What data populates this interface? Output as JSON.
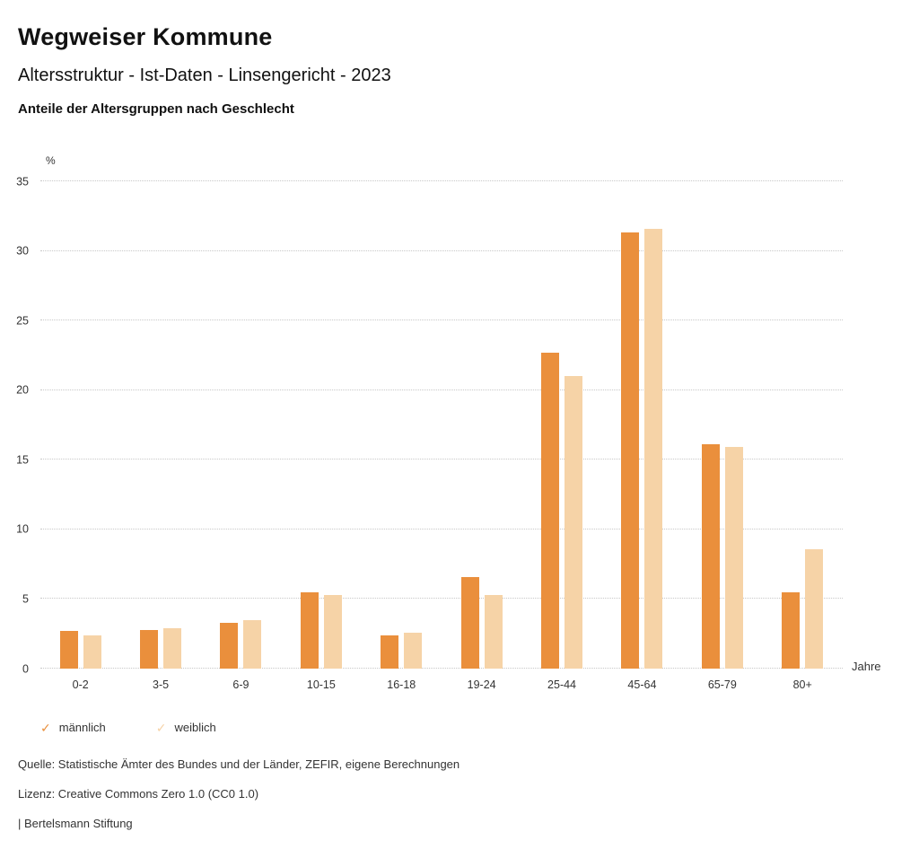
{
  "header": {
    "title": "Wegweiser Kommune",
    "subtitle": "Altersstruktur - Ist-Daten - Linsengericht - 2023",
    "chart_title": "Anteile der Altersgruppen nach Geschlecht"
  },
  "chart_data": {
    "type": "bar",
    "title": "Anteile der Altersgruppen nach Geschlecht",
    "unit": "%",
    "xlabel": "Jahre",
    "ylim": [
      0,
      35
    ],
    "yticks": [
      0,
      5,
      10,
      15,
      20,
      25,
      30,
      35
    ],
    "grid": true,
    "legend_position": "bottom",
    "categories": [
      "0-2",
      "3-5",
      "6-9",
      "10-15",
      "16-18",
      "19-24",
      "25-44",
      "45-64",
      "65-79",
      "80+"
    ],
    "series": [
      {
        "name": "männlich",
        "color": "#EA8F3C",
        "values": [
          2.7,
          2.8,
          3.3,
          5.5,
          2.4,
          6.6,
          22.7,
          31.3,
          16.1,
          5.5
        ]
      },
      {
        "name": "weiblich",
        "color": "#F6D3A7",
        "values": [
          2.4,
          2.9,
          3.5,
          5.3,
          2.6,
          5.3,
          21.0,
          31.6,
          15.9,
          8.6
        ]
      }
    ]
  },
  "legend": {
    "check_glyph": "✓",
    "items": [
      {
        "label": "männlich",
        "color": "#EA8F3C"
      },
      {
        "label": "weiblich",
        "color": "#F6D3A7"
      }
    ]
  },
  "footer": {
    "source": "Quelle: Statistische Ämter des Bundes und der Länder, ZEFIR, eigene Berechnungen",
    "license": "Lizenz: Creative Commons Zero 1.0 (CC0 1.0)",
    "attribution": "| Bertelsmann Stiftung"
  }
}
